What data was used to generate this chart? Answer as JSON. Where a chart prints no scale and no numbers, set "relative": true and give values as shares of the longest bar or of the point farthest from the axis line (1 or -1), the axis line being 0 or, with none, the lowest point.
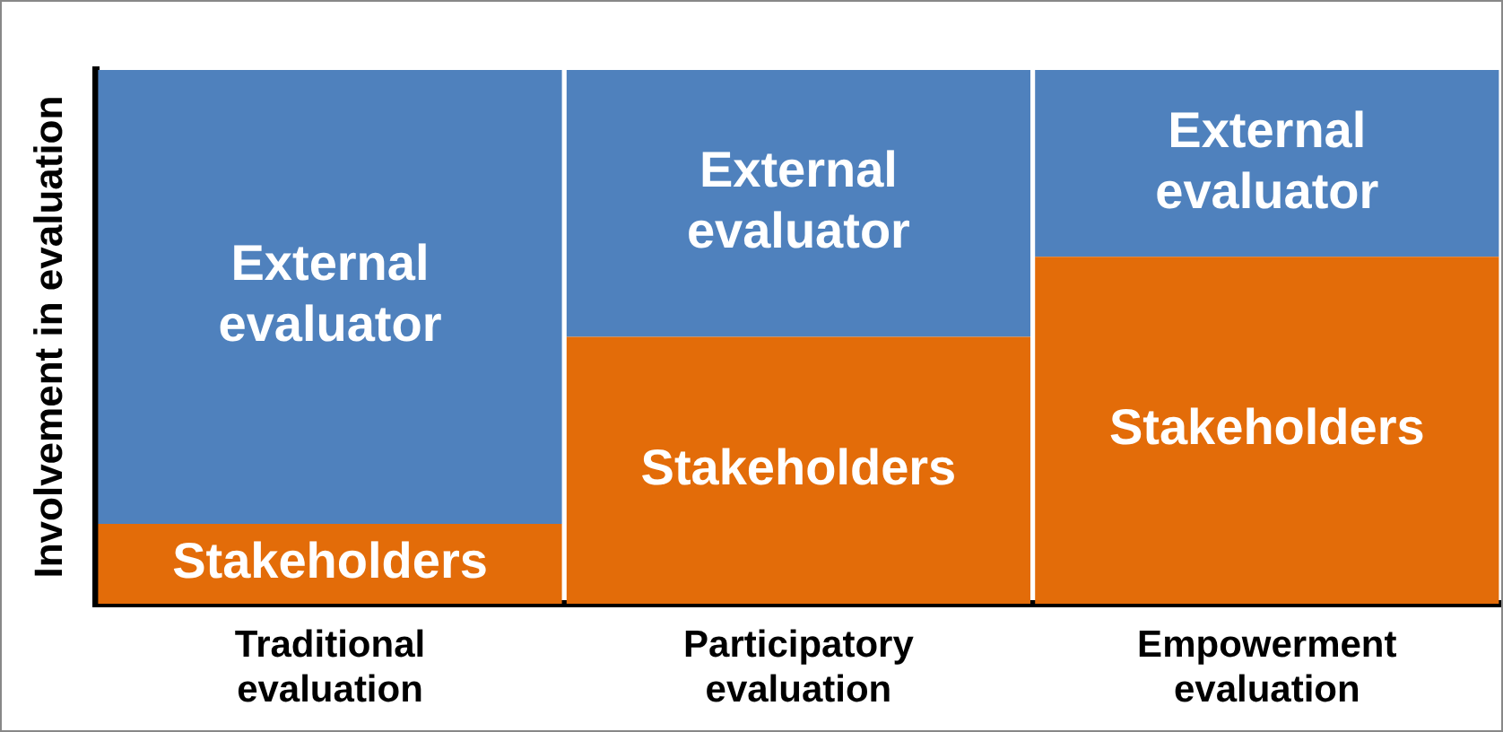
{
  "chart_data": {
    "type": "bar",
    "stacked": true,
    "relative": true,
    "ylabel": "Involvement in evaluation",
    "categories": [
      "Traditional evaluation",
      "Participatory evaluation",
      "Empowerment evaluation"
    ],
    "series": [
      {
        "name": "Stakeholders",
        "color": "#e36c09",
        "values": [
          0.15,
          0.5,
          0.65
        ]
      },
      {
        "name": "External evaluator",
        "color": "#4f81bd",
        "values": [
          0.85,
          0.5,
          0.35
        ]
      }
    ],
    "grid": false,
    "legend": false
  }
}
